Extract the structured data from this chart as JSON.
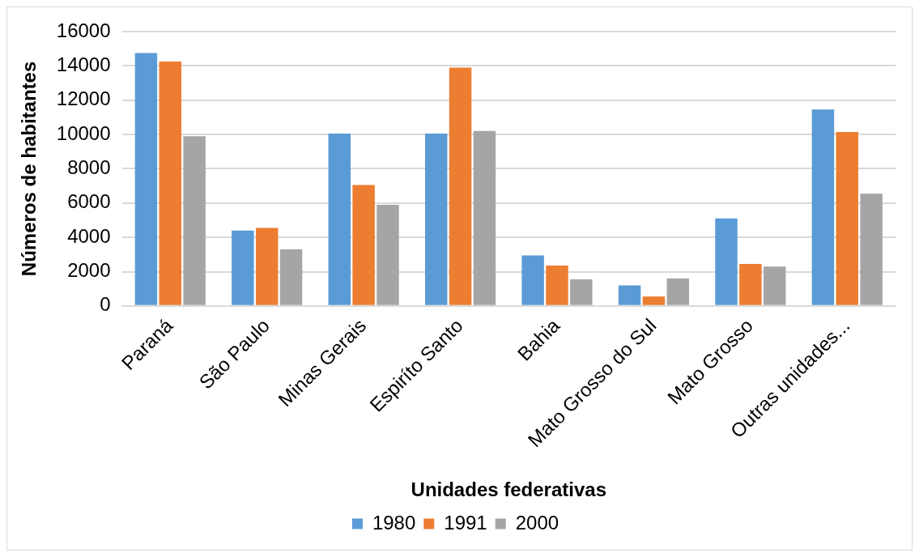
{
  "chart_data": {
    "type": "bar",
    "xlabel": "Unidades federativas",
    "ylabel": "Números de habitantes",
    "categories": [
      "Paraná",
      "São Paulo",
      "Minas Gerais",
      "Espiríto Santo",
      "Bahia",
      "Mato Grosso do Sul",
      "Mato Grosso",
      "Outras unidades..."
    ],
    "series": [
      {
        "name": "1980",
        "color": "#5b9bd5",
        "values": [
          14750,
          4400,
          10050,
          10050,
          2950,
          1200,
          5100,
          11450
        ]
      },
      {
        "name": "1991",
        "color": "#ed7d31",
        "values": [
          14250,
          4550,
          7050,
          13900,
          2350,
          550,
          2450,
          10150
        ]
      },
      {
        "name": "2000",
        "color": "#a5a5a5",
        "values": [
          9900,
          3300,
          5900,
          10200,
          1550,
          1600,
          2300,
          6550
        ]
      }
    ],
    "ylim": [
      0,
      16000
    ],
    "yticks": [
      0,
      2000,
      4000,
      6000,
      8000,
      10000,
      12000,
      14000,
      16000
    ],
    "grid": "y",
    "legend": "bottom"
  }
}
